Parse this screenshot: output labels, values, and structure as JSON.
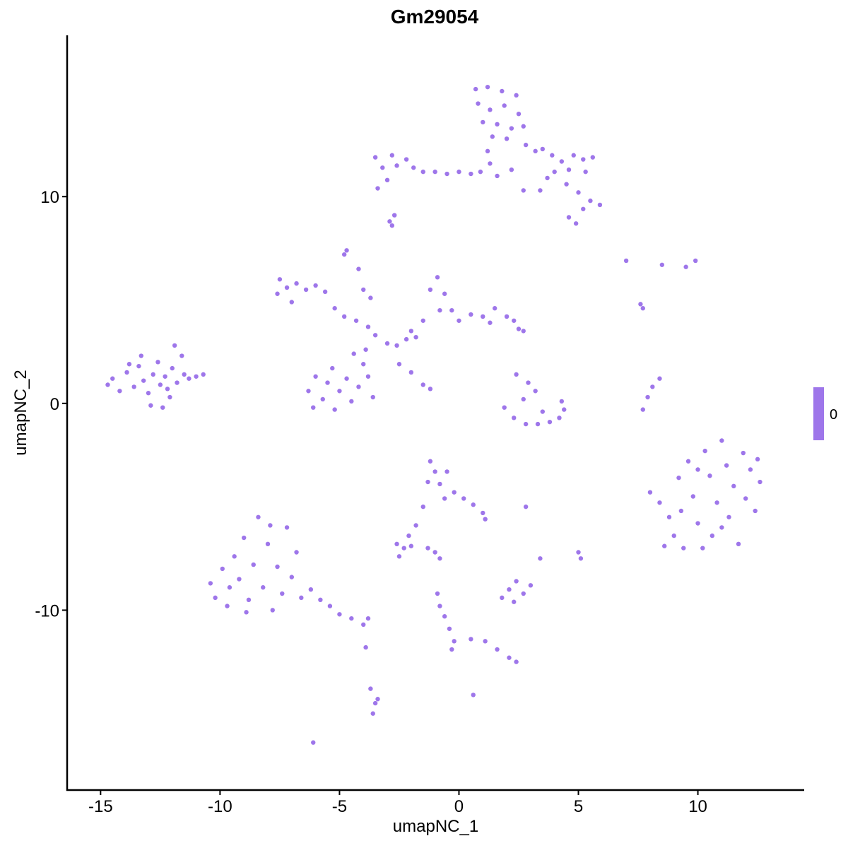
{
  "chart_data": {
    "type": "scatter",
    "title": "Gm29054",
    "xlabel": "umapNC_1",
    "ylabel": "umapNC_2",
    "xlim": [
      -16.4,
      14.45
    ],
    "ylim": [
      -18.7,
      17.8
    ],
    "xticks": [
      -15,
      -10,
      -5,
      0,
      5,
      10
    ],
    "yticks": [
      -10,
      0,
      10
    ],
    "xtick_labels": [
      "-15",
      "-10",
      "-5",
      "0",
      "5",
      "10"
    ],
    "ytick_labels": [
      "-10",
      "0",
      "10"
    ],
    "grid": false,
    "point_color": "#9E76EA",
    "legend": {
      "type": "colorbar",
      "placement": "right",
      "labels": [
        "0"
      ],
      "color": "#9E76EA"
    },
    "points": [
      [
        -14.5,
        1.2
      ],
      [
        -14.2,
        0.6
      ],
      [
        -13.9,
        1.5
      ],
      [
        -13.6,
        0.8
      ],
      [
        -13.4,
        1.8
      ],
      [
        -13.2,
        1.1
      ],
      [
        -13,
        0.5
      ],
      [
        -12.8,
        1.4
      ],
      [
        -12.6,
        2.0
      ],
      [
        -12.5,
        0.9
      ],
      [
        -12.3,
        1.3
      ],
      [
        -12.1,
        0.3
      ],
      [
        -12,
        1.7
      ],
      [
        -11.8,
        1.0
      ],
      [
        -11.6,
        2.3
      ],
      [
        -11.5,
        1.4
      ],
      [
        -11.3,
        1.2
      ],
      [
        -11,
        1.3
      ],
      [
        -10.7,
        1.4
      ],
      [
        -13.8,
        1.9
      ],
      [
        -12.9,
        -0.1
      ],
      [
        -12.4,
        -0.2
      ],
      [
        -14.7,
        0.9
      ],
      [
        -11.9,
        2.8
      ],
      [
        -13.3,
        2.3
      ],
      [
        -12.2,
        0.7
      ],
      [
        0.7,
        15.2
      ],
      [
        1.2,
        15.3
      ],
      [
        1.8,
        15.1
      ],
      [
        2.4,
        14.9
      ],
      [
        0.8,
        14.5
      ],
      [
        1.3,
        14.2
      ],
      [
        1.9,
        14.4
      ],
      [
        2.5,
        14.0
      ],
      [
        1.0,
        13.6
      ],
      [
        1.6,
        13.5
      ],
      [
        2.2,
        13.3
      ],
      [
        2.7,
        13.4
      ],
      [
        1.4,
        12.9
      ],
      [
        2.0,
        12.8
      ],
      [
        1.2,
        12.2
      ],
      [
        1.3,
        11.6
      ],
      [
        0.9,
        11.2
      ],
      [
        1.6,
        11.0
      ],
      [
        2.2,
        11.3
      ],
      [
        2.8,
        12.5
      ],
      [
        3.2,
        12.2
      ],
      [
        -3.5,
        11.9
      ],
      [
        -3.2,
        11.4
      ],
      [
        -2.8,
        12.0
      ],
      [
        -2.6,
        11.5
      ],
      [
        -2.2,
        11.8
      ],
      [
        -1.9,
        11.4
      ],
      [
        -1.5,
        11.2
      ],
      [
        -1.0,
        11.2
      ],
      [
        -0.5,
        11.1
      ],
      [
        0,
        11.2
      ],
      [
        0.5,
        11.1
      ],
      [
        -3.0,
        10.8
      ],
      [
        -3.4,
        10.4
      ],
      [
        3.5,
        12.3
      ],
      [
        3.9,
        12.0
      ],
      [
        4.3,
        11.7
      ],
      [
        4.8,
        12.0
      ],
      [
        5.2,
        11.8
      ],
      [
        5.6,
        11.9
      ],
      [
        4.0,
        11.2
      ],
      [
        4.6,
        11.3
      ],
      [
        5.3,
        11.2
      ],
      [
        3.7,
        10.9
      ],
      [
        4.5,
        10.6
      ],
      [
        5.0,
        10.2
      ],
      [
        5.5,
        9.8
      ],
      [
        5.9,
        9.6
      ],
      [
        5.2,
        9.4
      ],
      [
        4.6,
        9.0
      ],
      [
        4.9,
        8.7
      ],
      [
        3.4,
        10.3
      ],
      [
        2.7,
        10.3
      ],
      [
        -2.9,
        8.8
      ],
      [
        -2.7,
        9.1
      ],
      [
        -2.8,
        8.6
      ],
      [
        -7.5,
        6.0
      ],
      [
        -7.2,
        5.6
      ],
      [
        -6.8,
        5.8
      ],
      [
        -6.4,
        5.5
      ],
      [
        -6.0,
        5.7
      ],
      [
        -7.6,
        5.3
      ],
      [
        -7.0,
        4.9
      ],
      [
        -5.6,
        5.4
      ],
      [
        -5.2,
        4.6
      ],
      [
        -4.8,
        4.2
      ],
      [
        -4.3,
        4.0
      ],
      [
        -3.8,
        3.7
      ],
      [
        -3.5,
        3.3
      ],
      [
        -3.0,
        2.9
      ],
      [
        -2.6,
        2.8
      ],
      [
        -2.2,
        3.1
      ],
      [
        -4.7,
        7.4
      ],
      [
        -4.8,
        7.2
      ],
      [
        -6.3,
        0.6
      ],
      [
        -6.0,
        1.3
      ],
      [
        -5.7,
        0.2
      ],
      [
        -5.5,
        1.0
      ],
      [
        -5.2,
        -0.3
      ],
      [
        -5.0,
        0.6
      ],
      [
        -4.7,
        1.2
      ],
      [
        -4.5,
        0.1
      ],
      [
        -4.2,
        0.8
      ],
      [
        -4.0,
        1.9
      ],
      [
        -3.8,
        1.3
      ],
      [
        -3.6,
        0.3
      ],
      [
        -4.4,
        2.4
      ],
      [
        -6.1,
        -0.2
      ],
      [
        -5.3,
        1.7
      ],
      [
        -3.9,
        2.6
      ],
      [
        -2.0,
        3.5
      ],
      [
        -1.5,
        4.0
      ],
      [
        -1.2,
        5.5
      ],
      [
        -0.9,
        6.1
      ],
      [
        -0.6,
        5.3
      ],
      [
        -0.3,
        4.5
      ],
      [
        0,
        4.0
      ],
      [
        0.5,
        4.3
      ],
      [
        1.0,
        4.2
      ],
      [
        1.5,
        4.6
      ],
      [
        2.0,
        4.2
      ],
      [
        2.3,
        4.0
      ],
      [
        2.5,
        3.6
      ],
      [
        2.7,
        3.5
      ],
      [
        1.3,
        3.9
      ],
      [
        -0.8,
        4.5
      ],
      [
        -1.8,
        3.2
      ],
      [
        -2.5,
        1.9
      ],
      [
        -2.0,
        1.5
      ],
      [
        -1.5,
        0.9
      ],
      [
        -1.2,
        0.7
      ],
      [
        -4.2,
        6.5
      ],
      [
        -4.0,
        5.5
      ],
      [
        -3.7,
        5.1
      ],
      [
        2.4,
        1.4
      ],
      [
        2.9,
        1.0
      ],
      [
        3.2,
        0.6
      ],
      [
        2.7,
        0.2
      ],
      [
        1.9,
        -0.2
      ],
      [
        2.3,
        -0.7
      ],
      [
        2.8,
        -1.0
      ],
      [
        3.3,
        -1.0
      ],
      [
        3.8,
        -0.9
      ],
      [
        4.2,
        -0.7
      ],
      [
        4.4,
        -0.3
      ],
      [
        3.5,
        -0.4
      ],
      [
        4.3,
        0.1
      ],
      [
        7.7,
        -0.3
      ],
      [
        7.9,
        0.3
      ],
      [
        8.1,
        0.8
      ],
      [
        8.4,
        1.2
      ],
      [
        7.0,
        6.9
      ],
      [
        8.5,
        6.7
      ],
      [
        9.5,
        6.6
      ],
      [
        9.9,
        6.9
      ],
      [
        7.6,
        4.8
      ],
      [
        7.7,
        4.6
      ],
      [
        8.0,
        -4.3
      ],
      [
        8.4,
        -4.8
      ],
      [
        8.8,
        -5.5
      ],
      [
        9.0,
        -6.4
      ],
      [
        9.4,
        -7.0
      ],
      [
        9.2,
        -3.6
      ],
      [
        9.6,
        -2.8
      ],
      [
        9.8,
        -4.5
      ],
      [
        10.0,
        -5.8
      ],
      [
        10.3,
        -2.3
      ],
      [
        10.5,
        -3.5
      ],
      [
        10.6,
        -6.4
      ],
      [
        10.8,
        -4.8
      ],
      [
        11.0,
        -1.8
      ],
      [
        11.2,
        -3.0
      ],
      [
        11.3,
        -5.5
      ],
      [
        11.5,
        -4.0
      ],
      [
        11.7,
        -6.8
      ],
      [
        11.9,
        -2.4
      ],
      [
        12.0,
        -4.6
      ],
      [
        12.2,
        -3.2
      ],
      [
        12.4,
        -5.2
      ],
      [
        12.6,
        -3.8
      ],
      [
        10.2,
        -7.0
      ],
      [
        9.3,
        -5.2
      ],
      [
        11.0,
        -6.0
      ],
      [
        10.0,
        -3.2
      ],
      [
        8.6,
        -6.9
      ],
      [
        12.5,
        -2.7
      ],
      [
        -10.4,
        -8.7
      ],
      [
        -10.2,
        -9.4
      ],
      [
        -9.9,
        -8.0
      ],
      [
        -9.7,
        -9.8
      ],
      [
        -9.4,
        -7.4
      ],
      [
        -9.2,
        -8.5
      ],
      [
        -9.0,
        -6.5
      ],
      [
        -8.8,
        -9.5
      ],
      [
        -8.6,
        -7.8
      ],
      [
        -8.4,
        -5.5
      ],
      [
        -8.2,
        -8.9
      ],
      [
        -8.0,
        -6.8
      ],
      [
        -7.8,
        -10.0
      ],
      [
        -7.6,
        -7.9
      ],
      [
        -7.4,
        -9.2
      ],
      [
        -7.2,
        -6.0
      ],
      [
        -7.0,
        -8.4
      ],
      [
        -6.8,
        -7.2
      ],
      [
        -6.6,
        -9.4
      ],
      [
        -8.9,
        -10.1
      ],
      [
        -9.6,
        -8.9
      ],
      [
        -7.9,
        -5.9
      ],
      [
        -6.2,
        -9.0
      ],
      [
        -5.8,
        -9.5
      ],
      [
        -5.4,
        -9.8
      ],
      [
        -5.0,
        -10.2
      ],
      [
        -4.5,
        -10.4
      ],
      [
        -4.0,
        -10.7
      ],
      [
        -3.8,
        -10.4
      ],
      [
        -1.2,
        -2.8
      ],
      [
        -1.0,
        -3.3
      ],
      [
        -0.8,
        -3.9
      ],
      [
        -0.5,
        -3.3
      ],
      [
        -0.2,
        -4.3
      ],
      [
        0.2,
        -4.6
      ],
      [
        -0.6,
        -4.6
      ],
      [
        0.6,
        -4.9
      ],
      [
        1.0,
        -5.3
      ],
      [
        1.1,
        -5.6
      ],
      [
        -1.3,
        -3.8
      ],
      [
        -1.5,
        -5.0
      ],
      [
        -1.8,
        -5.9
      ],
      [
        -2.1,
        -6.4
      ],
      [
        -2.6,
        -6.8
      ],
      [
        -2.3,
        -7.0
      ],
      [
        -2.0,
        -6.9
      ],
      [
        -2.5,
        -7.4
      ],
      [
        -1.3,
        -7.0
      ],
      [
        -1.0,
        -7.2
      ],
      [
        -0.8,
        -7.5
      ],
      [
        1.8,
        -9.4
      ],
      [
        2.1,
        -9.0
      ],
      [
        2.4,
        -8.6
      ],
      [
        2.7,
        -9.2
      ],
      [
        3.0,
        -8.8
      ],
      [
        2.3,
        -9.6
      ],
      [
        3.4,
        -7.5
      ],
      [
        5.0,
        -7.2
      ],
      [
        5.1,
        -7.5
      ],
      [
        2.8,
        -5.0
      ],
      [
        -0.9,
        -9.2
      ],
      [
        -0.8,
        -9.8
      ],
      [
        -0.6,
        -10.3
      ],
      [
        -0.4,
        -10.9
      ],
      [
        -0.2,
        -11.5
      ],
      [
        -0.3,
        -11.9
      ],
      [
        0.5,
        -11.4
      ],
      [
        1.1,
        -11.5
      ],
      [
        1.6,
        -11.9
      ],
      [
        2.1,
        -12.3
      ],
      [
        2.4,
        -12.5
      ],
      [
        -3.9,
        -11.8
      ],
      [
        -3.7,
        -13.8
      ],
      [
        -3.5,
        -14.5
      ],
      [
        -3.6,
        -15.0
      ],
      [
        -3.4,
        -14.3
      ],
      [
        0.6,
        -14.1
      ],
      [
        -6.1,
        -16.4
      ]
    ]
  }
}
